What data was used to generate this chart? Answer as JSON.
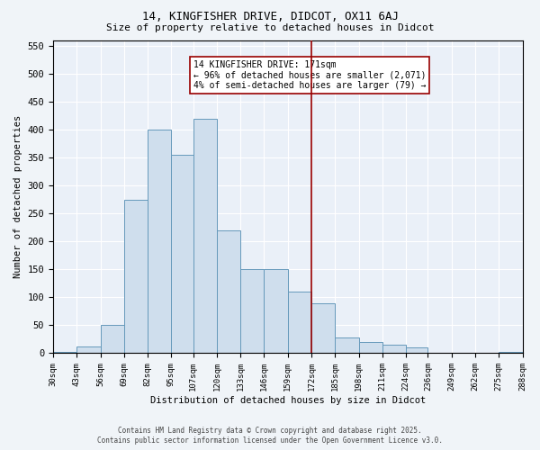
{
  "title_line1": "14, KINGFISHER DRIVE, DIDCOT, OX11 6AJ",
  "title_line2": "Size of property relative to detached houses in Didcot",
  "xlabel": "Distribution of detached houses by size in Didcot",
  "ylabel": "Number of detached properties",
  "footer_line1": "Contains HM Land Registry data © Crown copyright and database right 2025.",
  "footer_line2": "Contains public sector information licensed under the Open Government Licence v3.0.",
  "annotation_title": "14 KINGFISHER DRIVE: 171sqm",
  "annotation_line1": "← 96% of detached houses are smaller (2,071)",
  "annotation_line2": "4% of semi-detached houses are larger (79) →",
  "property_size": 171,
  "bin_edges": [
    30,
    43,
    56,
    69,
    82,
    95,
    107,
    120,
    133,
    146,
    159,
    172,
    185,
    198,
    211,
    224,
    236,
    249,
    262,
    275,
    288
  ],
  "bar_heights": [
    3,
    12,
    50,
    275,
    400,
    355,
    420,
    220,
    150,
    150,
    110,
    90,
    28,
    20,
    15,
    10,
    0,
    0,
    0,
    3
  ],
  "bar_color": "#cfdeed",
  "bar_edge_color": "#6699bb",
  "vline_color": "#990000",
  "vline_x": 172,
  "background_color": "#f0f4f8",
  "plot_bg_color": "#eaf0f8",
  "ylim": [
    0,
    560
  ],
  "yticks": [
    0,
    50,
    100,
    150,
    200,
    250,
    300,
    350,
    400,
    450,
    500,
    550
  ],
  "annotation_box_facecolor": "#ffffff",
  "annotation_box_edgecolor": "#990000",
  "figsize": [
    6.0,
    5.0
  ],
  "dpi": 100,
  "title_fontsize": 9,
  "subtitle_fontsize": 8,
  "ylabel_fontsize": 7.5,
  "xlabel_fontsize": 7.5,
  "ytick_fontsize": 7.5,
  "xtick_fontsize": 6.5,
  "annotation_fontsize": 7,
  "footer_fontsize": 5.5
}
